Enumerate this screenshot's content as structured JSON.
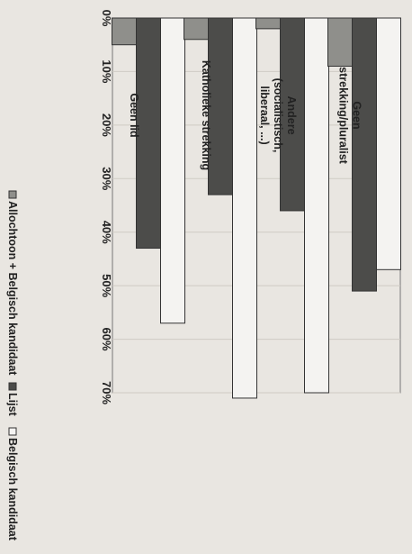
{
  "chart_data": {
    "type": "bar",
    "orientation": "rotated 90° clockwise (values increase rightward as printed upright labels)",
    "title": "",
    "xlabel": "",
    "ylabel": "",
    "ylim": [
      0,
      70
    ],
    "y_ticks": [
      "0%",
      "10%",
      "20%",
      "30%",
      "40%",
      "50%",
      "60%",
      "70%"
    ],
    "categories": [
      [
        "Geen lid"
      ],
      [
        "Katholieke strekking"
      ],
      [
        "Andere",
        "(socialistisch,",
        "liberaal, ...)"
      ],
      [
        "Geen",
        "strekking/pluralist"
      ]
    ],
    "series": [
      {
        "name": "Allochtoon + Belgisch kandidaat",
        "color": "#8f8f8b",
        "values": [
          5,
          4,
          2,
          9
        ]
      },
      {
        "name": "Lijst",
        "color": "#4c4c4a",
        "values": [
          43,
          33,
          36,
          51
        ]
      },
      {
        "name": "Belgisch kandidaat",
        "color": "#f4f3f1",
        "values": [
          57,
          71,
          70,
          47
        ]
      }
    ],
    "legend": {
      "position": "bottom",
      "items": [
        "Allochtoon + Belgisch kandidaat",
        "Lijst",
        "Belgisch kandidaat"
      ]
    },
    "grid": true
  }
}
